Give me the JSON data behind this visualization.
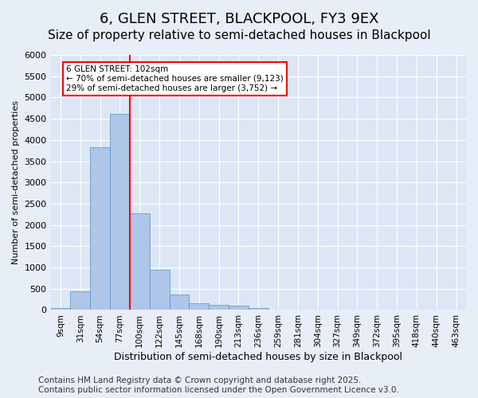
{
  "title": "6, GLEN STREET, BLACKPOOL, FY3 9EX",
  "subtitle": "Size of property relative to semi-detached houses in Blackpool",
  "xlabel": "Distribution of semi-detached houses by size in Blackpool",
  "ylabel": "Number of semi-detached properties",
  "bins": [
    "9sqm",
    "31sqm",
    "54sqm",
    "77sqm",
    "100sqm",
    "122sqm",
    "145sqm",
    "168sqm",
    "190sqm",
    "213sqm",
    "236sqm",
    "259sqm",
    "281sqm",
    "304sqm",
    "327sqm",
    "349sqm",
    "372sqm",
    "395sqm",
    "418sqm",
    "440sqm",
    "463sqm"
  ],
  "values": [
    50,
    430,
    3820,
    4620,
    2280,
    950,
    370,
    150,
    130,
    100,
    50,
    0,
    0,
    0,
    0,
    0,
    0,
    0,
    0,
    0,
    0
  ],
  "bar_color": "#aec6e8",
  "bar_edge_color": "#5a8fc2",
  "vline_x_index": 4,
  "vline_color": "red",
  "annotation_text": "6 GLEN STREET: 102sqm\n← 70% of semi-detached houses are smaller (9,123)\n29% of semi-detached houses are larger (3,752) →",
  "annotation_box_color": "white",
  "annotation_box_edge": "red",
  "ylim": [
    0,
    6000
  ],
  "yticks": [
    0,
    500,
    1000,
    1500,
    2000,
    2500,
    3000,
    3500,
    4000,
    4500,
    5000,
    5500,
    6000
  ],
  "background_color": "#e8eef7",
  "plot_bg_color": "#dce6f5",
  "grid_color": "white",
  "footer": "Contains HM Land Registry data © Crown copyright and database right 2025.\nContains public sector information licensed under the Open Government Licence v3.0.",
  "title_fontsize": 13,
  "subtitle_fontsize": 11,
  "footer_fontsize": 7.5
}
